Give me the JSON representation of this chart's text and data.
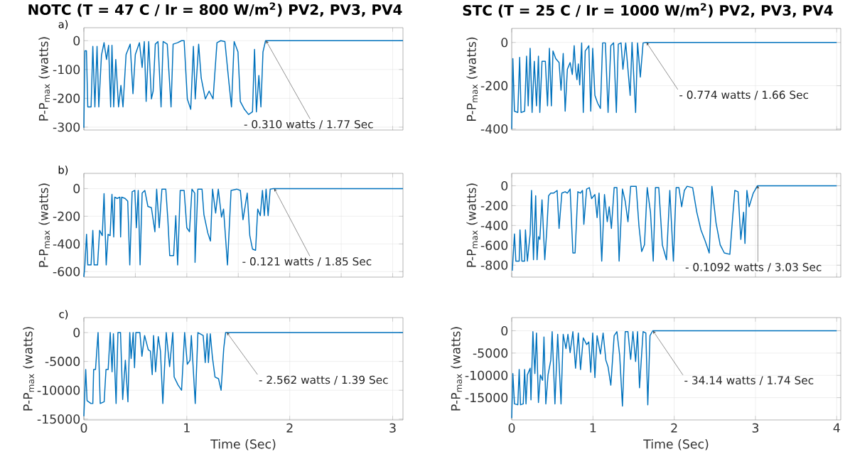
{
  "chart_data": [
    {
      "type": "line",
      "title": "NOTC (T = 47 C / Ir = 800 W/m$^{2}$) PV2, PV3, PV4",
      "ylabel": "P-P$_{max}$ (watts)",
      "xlim": [
        0,
        3.1
      ],
      "ylim": [
        -310,
        45
      ],
      "xticks": [
        0,
        1,
        2,
        3
      ],
      "yticks": [
        -300,
        -200,
        -100,
        0
      ],
      "grid": true,
      "tick_labels": "y",
      "annotations": [
        "a)",
        {
          "text": "- 0.310 watts / 1.77 Sec",
          "x": 1.77,
          "y": -0.31
        }
      ],
      "series": [
        {
          "color": "#0072bd",
          "x": [
            0,
            0.01,
            0.025,
            0.038,
            0.07,
            0.087,
            0.107,
            0.128,
            0.145,
            0.171,
            0.196,
            0.22,
            0.24,
            0.26,
            0.273,
            0.29,
            0.31,
            0.337,
            0.36,
            0.38,
            0.41,
            0.45,
            0.477,
            0.5,
            0.54,
            0.566,
            0.587,
            0.605,
            0.63,
            0.656,
            0.673,
            0.694,
            0.72,
            0.75,
            0.77,
            0.81,
            0.847,
            0.867,
            0.91,
            0.949,
            0.974,
            1.005,
            1.038,
            1.064,
            1.082,
            1.115,
            1.14,
            1.18,
            1.217,
            1.255,
            1.293,
            1.33,
            1.37,
            1.41,
            1.434,
            1.46,
            1.497,
            1.52,
            1.56,
            1.6,
            1.638,
            1.658,
            1.676,
            1.7,
            1.72,
            1.74,
            1.765,
            3.1
          ],
          "values": [
            -302,
            -35,
            -35,
            -230,
            -230,
            -20,
            -230,
            -20,
            -230,
            -50,
            -7,
            -65,
            -16,
            -230,
            -16,
            -230,
            -65,
            -230,
            -155,
            -230,
            -48,
            -12,
            -184,
            -48,
            -7,
            -93,
            -3,
            -211,
            -3,
            -202,
            -175,
            -12,
            -3,
            -230,
            -3,
            -12,
            -230,
            -12,
            -7,
            0,
            0,
            -202,
            -238,
            -20,
            -202,
            -12,
            -130,
            -202,
            -175,
            -202,
            -7,
            0,
            -3,
            -148,
            -230,
            -3,
            -39,
            -211,
            -238,
            -256,
            -247,
            -30,
            -247,
            -121,
            -230,
            -39,
            0,
            0
          ]
        }
      ]
    },
    {
      "type": "line",
      "title": "STC (T = 25 C / Ir = 1000 W/m$^{2}$) PV2, PV3, PV4",
      "ylabel": "P-P$_{max}$ (watts)",
      "xlim": [
        0,
        4.05
      ],
      "ylim": [
        -405,
        65
      ],
      "xticks": [
        0,
        1,
        2,
        3,
        4
      ],
      "yticks": [
        -400,
        -200,
        0
      ],
      "grid": true,
      "tick_labels": "y",
      "annotations": [
        {
          "text": "- 0.774 watts / 1.66 Sec",
          "x": 1.66,
          "y": -0.774
        }
      ],
      "series": [
        {
          "color": "#0072bd",
          "x": [
            0,
            0.014,
            0.034,
            0.075,
            0.098,
            0.115,
            0.159,
            0.183,
            0.203,
            0.227,
            0.251,
            0.278,
            0.305,
            0.329,
            0.346,
            0.373,
            0.414,
            0.441,
            0.464,
            0.488,
            0.508,
            0.542,
            0.583,
            0.607,
            0.634,
            0.658,
            0.685,
            0.719,
            0.746,
            0.769,
            0.786,
            0.803,
            0.82,
            0.837,
            0.861,
            0.881,
            0.905,
            0.929,
            0.949,
            0.973,
            0.997,
            1.024,
            1.058,
            1.092,
            1.119,
            1.153,
            1.186,
            1.22,
            1.254,
            1.288,
            1.312,
            1.346,
            1.369,
            1.403,
            1.458,
            1.481,
            1.525,
            1.549,
            1.583,
            1.617,
            1.651,
            1.668,
            4.0
          ],
          "values": [
            -400,
            -75,
            -318,
            -324,
            -69,
            -324,
            -318,
            -63,
            -293,
            -27,
            -324,
            -87,
            -293,
            -63,
            -324,
            -87,
            -87,
            -293,
            -27,
            -293,
            -39,
            -75,
            -93,
            -221,
            -51,
            -318,
            -124,
            -93,
            -148,
            -15,
            -124,
            -172,
            -99,
            -196,
            -2,
            -324,
            -39,
            -27,
            -15,
            -318,
            -27,
            -245,
            -281,
            -305,
            -2,
            -2,
            -324,
            -15,
            -2,
            -324,
            -8,
            -2,
            -124,
            -2,
            -245,
            0,
            -324,
            -2,
            -160,
            -2,
            0,
            0,
            0
          ]
        }
      ]
    },
    {
      "type": "line",
      "ylabel": "P-P$_{max}$ (watts)",
      "xlim": [
        0,
        3.1
      ],
      "ylim": [
        -640,
        110
      ],
      "xticks": [
        0,
        0.5,
        1,
        1.5,
        2,
        2.5,
        3
      ],
      "yticks": [
        -600,
        -400,
        -200,
        0
      ],
      "grid": true,
      "tick_labels": "y",
      "annotations": [
        "b)",
        {
          "text": "- 0.121 watts / 1.85 Sec",
          "x": 1.85,
          "y": -0.121
        }
      ],
      "series": [
        {
          "color": "#0072bd",
          "x": [
            0,
            0.01,
            0.026,
            0.038,
            0.07,
            0.087,
            0.1,
            0.133,
            0.153,
            0.179,
            0.196,
            0.217,
            0.235,
            0.255,
            0.273,
            0.29,
            0.3,
            0.324,
            0.35,
            0.357,
            0.367,
            0.4,
            0.426,
            0.446,
            0.469,
            0.495,
            0.51,
            0.528,
            0.546,
            0.566,
            0.592,
            0.622,
            0.656,
            0.69,
            0.707,
            0.732,
            0.758,
            0.796,
            0.816,
            0.834,
            0.872,
            0.893,
            0.911,
            0.936,
            0.974,
            1.0,
            1.026,
            1.05,
            1.077,
            1.08,
            1.107,
            1.148,
            1.166,
            1.204,
            1.23,
            1.25,
            1.28,
            1.306,
            1.337,
            1.357,
            1.395,
            1.43,
            1.485,
            1.52,
            1.546,
            1.587,
            1.612,
            1.638,
            1.668,
            1.689,
            1.714,
            1.735,
            1.753,
            1.77,
            1.79,
            1.81,
            1.84,
            3.1
          ],
          "values": [
            -638,
            -552,
            -331,
            -552,
            -552,
            -302,
            -552,
            -552,
            -302,
            -340,
            -37,
            -552,
            -331,
            -340,
            -42,
            -350,
            -62,
            -71,
            -62,
            -350,
            -62,
            -71,
            -90,
            -552,
            -23,
            -13,
            -283,
            -13,
            -552,
            -33,
            -13,
            -129,
            -138,
            -312,
            -4,
            -283,
            -4,
            -4,
            -225,
            -485,
            -485,
            -196,
            -552,
            -13,
            -13,
            -283,
            -312,
            -4,
            -33,
            -533,
            -4,
            -4,
            -187,
            -321,
            -379,
            -4,
            -177,
            -4,
            -206,
            -148,
            -552,
            -13,
            -4,
            -13,
            -225,
            -33,
            -340,
            -437,
            -446,
            -148,
            -196,
            -13,
            -196,
            -4,
            -196,
            -4,
            0,
            0
          ]
        }
      ]
    },
    {
      "type": "line",
      "ylabel": "P-P$_{max}$ (watts)",
      "xlim": [
        0,
        4.05
      ],
      "ylim": [
        -920,
        125
      ],
      "xticks": [
        0,
        1,
        2,
        3,
        4
      ],
      "yticks": [
        -800,
        -600,
        -400,
        -200,
        0
      ],
      "grid": true,
      "tick_labels": "y",
      "annotations": [
        {
          "text": "- 0.1092 watts / 3.03 Sec",
          "x": 3.03,
          "y": -0.1092
        }
      ],
      "series": [
        {
          "color": "#0072bd",
          "x": [
            0.007,
            0.034,
            0.051,
            0.092,
            0.102,
            0.125,
            0.159,
            0.169,
            0.193,
            0.227,
            0.244,
            0.268,
            0.295,
            0.312,
            0.329,
            0.346,
            0.373,
            0.407,
            0.431,
            0.454,
            0.481,
            0.515,
            0.559,
            0.583,
            0.617,
            0.658,
            0.685,
            0.719,
            0.753,
            0.78,
            0.814,
            0.847,
            0.871,
            0.888,
            0.922,
            0.956,
            0.983,
            1.024,
            1.051,
            1.075,
            1.108,
            1.142,
            1.176,
            1.2,
            1.227,
            1.261,
            1.295,
            1.322,
            1.363,
            1.397,
            1.431,
            1.464,
            1.532,
            1.566,
            1.6,
            1.634,
            1.668,
            1.708,
            1.742,
            1.769,
            1.81,
            1.854,
            1.905,
            1.946,
            1.99,
            2.024,
            2.058,
            2.092,
            2.125,
            2.159,
            2.227,
            2.278,
            2.329,
            2.38,
            2.431,
            2.464,
            2.515,
            2.566,
            2.617,
            2.685,
            2.719,
            2.746,
            2.786,
            2.82,
            2.854,
            2.871,
            2.895,
            2.922,
            2.973,
            3.024,
            4.0
          ],
          "values": [
            -855,
            -485,
            -759,
            -759,
            -444,
            -759,
            -759,
            -444,
            -759,
            -485,
            -47,
            -745,
            -101,
            -745,
            -512,
            -540,
            -142,
            -745,
            -458,
            -101,
            -74,
            -74,
            -47,
            -430,
            -74,
            -60,
            -74,
            -33,
            -677,
            -677,
            -60,
            -74,
            -47,
            -389,
            -33,
            -19,
            -129,
            -88,
            -321,
            -74,
            -759,
            -88,
            -362,
            -211,
            -430,
            -19,
            -19,
            -759,
            -33,
            -156,
            -362,
            -5,
            -5,
            -403,
            -663,
            -595,
            -19,
            -266,
            -759,
            -19,
            -19,
            -595,
            -745,
            -47,
            -759,
            -19,
            -19,
            -211,
            -47,
            -5,
            -19,
            -266,
            -444,
            -553,
            -677,
            -5,
            -375,
            -595,
            -677,
            -690,
            -321,
            -47,
            -60,
            -540,
            -266,
            -581,
            -47,
            -211,
            -74,
            0,
            0
          ]
        }
      ]
    },
    {
      "type": "line",
      "xlabel": "Time (Sec)",
      "ylabel": "P-P$_{max}$ (watts)",
      "xlim": [
        0,
        3.1
      ],
      "ylim": [
        -15150,
        2600
      ],
      "xticks": [
        0,
        1,
        2,
        3
      ],
      "yticks": [
        -15000,
        -10000,
        -5000,
        0
      ],
      "grid": true,
      "annotations": [
        "c)",
        {
          "text": "- 2.562 watts / 1.39 Sec",
          "x": 1.39,
          "y": -2.562
        }
      ],
      "series": [
        {
          "color": "#0072bd",
          "x": [
            0,
            0.018,
            0.031,
            0.069,
            0.087,
            0.095,
            0.113,
            0.138,
            0.159,
            0.197,
            0.215,
            0.236,
            0.256,
            0.274,
            0.287,
            0.313,
            0.331,
            0.356,
            0.377,
            0.403,
            0.428,
            0.446,
            0.459,
            0.479,
            0.492,
            0.505,
            0.544,
            0.564,
            0.59,
            0.626,
            0.646,
            0.664,
            0.677,
            0.697,
            0.723,
            0.744,
            0.767,
            0.8,
            0.833,
            0.864,
            0.877,
            0.915,
            0.949,
            0.979,
            1.005,
            1.031,
            1.044,
            1.082,
            1.108,
            1.159,
            1.179,
            1.197,
            1.21,
            1.228,
            1.249,
            1.274,
            1.308,
            1.333,
            1.359,
            1.377,
            3.1
          ],
          "values": [
            -14500,
            -6400,
            -11800,
            -12300,
            -12300,
            -6400,
            -6400,
            0,
            -12300,
            -12000,
            -6400,
            -6400,
            0,
            -6800,
            -200,
            -12300,
            0,
            0,
            -11600,
            -4800,
            -12000,
            0,
            -4500,
            0,
            -6100,
            0,
            0,
            -4100,
            -500,
            -3000,
            -3200,
            -7300,
            -500,
            -6800,
            -700,
            -3200,
            -12300,
            0,
            -5900,
            0,
            -7700,
            -9100,
            -10000,
            0,
            -5500,
            -4800,
            -500,
            -12300,
            0,
            -500,
            -5200,
            -200,
            -5200,
            -200,
            -4300,
            -7700,
            -8000,
            -10000,
            -2700,
            0,
            0
          ]
        }
      ]
    },
    {
      "type": "line",
      "xlabel": "Time (Sec)",
      "ylabel": "P-P$_{max}$ (watts)",
      "xlim": [
        0,
        4.05
      ],
      "ylim": [
        -20000,
        2950
      ],
      "xticks": [
        0,
        1,
        2,
        3,
        4
      ],
      "yticks": [
        -15000,
        -10000,
        -5000,
        0
      ],
      "grid": true,
      "annotations": [
        {
          "text": "- 34.14 watts / 1.74 Sec",
          "x": 1.74,
          "y": -34.14
        }
      ],
      "series": [
        {
          "color": "#0072bd",
          "x": [
            0,
            0.014,
            0.034,
            0.075,
            0.092,
            0.108,
            0.142,
            0.159,
            0.176,
            0.193,
            0.227,
            0.237,
            0.261,
            0.285,
            0.305,
            0.329,
            0.353,
            0.38,
            0.397,
            0.42,
            0.447,
            0.481,
            0.498,
            0.532,
            0.566,
            0.607,
            0.634,
            0.668,
            0.692,
            0.719,
            0.753,
            0.786,
            0.82,
            0.847,
            0.881,
            0.922,
            0.949,
            0.973,
            0.997,
            1.024,
            1.051,
            1.092,
            1.125,
            1.159,
            1.186,
            1.22,
            1.261,
            1.295,
            1.329,
            1.363,
            1.397,
            1.431,
            1.464,
            1.492,
            1.525,
            1.549,
            1.573,
            1.617,
            1.651,
            1.675,
            1.702,
            1.736,
            4.0
          ],
          "values": [
            -19600,
            -9600,
            -16400,
            -16600,
            -8700,
            -16600,
            -16400,
            -8700,
            -16400,
            -9900,
            -8400,
            -15500,
            -200,
            -9600,
            -500,
            -16100,
            -9900,
            -11100,
            -1400,
            -16400,
            -9900,
            -6600,
            -200,
            -16400,
            -800,
            -16400,
            -800,
            -4000,
            -800,
            -4900,
            -200,
            -8400,
            -500,
            -8700,
            -1600,
            -3100,
            -2500,
            -9300,
            -500,
            -10500,
            -1100,
            -5200,
            -500,
            -6600,
            -8100,
            -12200,
            -1100,
            -200,
            -5500,
            -16900,
            -200,
            -200,
            -6400,
            -200,
            -6900,
            -200,
            -12800,
            -200,
            -500,
            -16600,
            -1100,
            0,
            0
          ]
        }
      ]
    }
  ]
}
